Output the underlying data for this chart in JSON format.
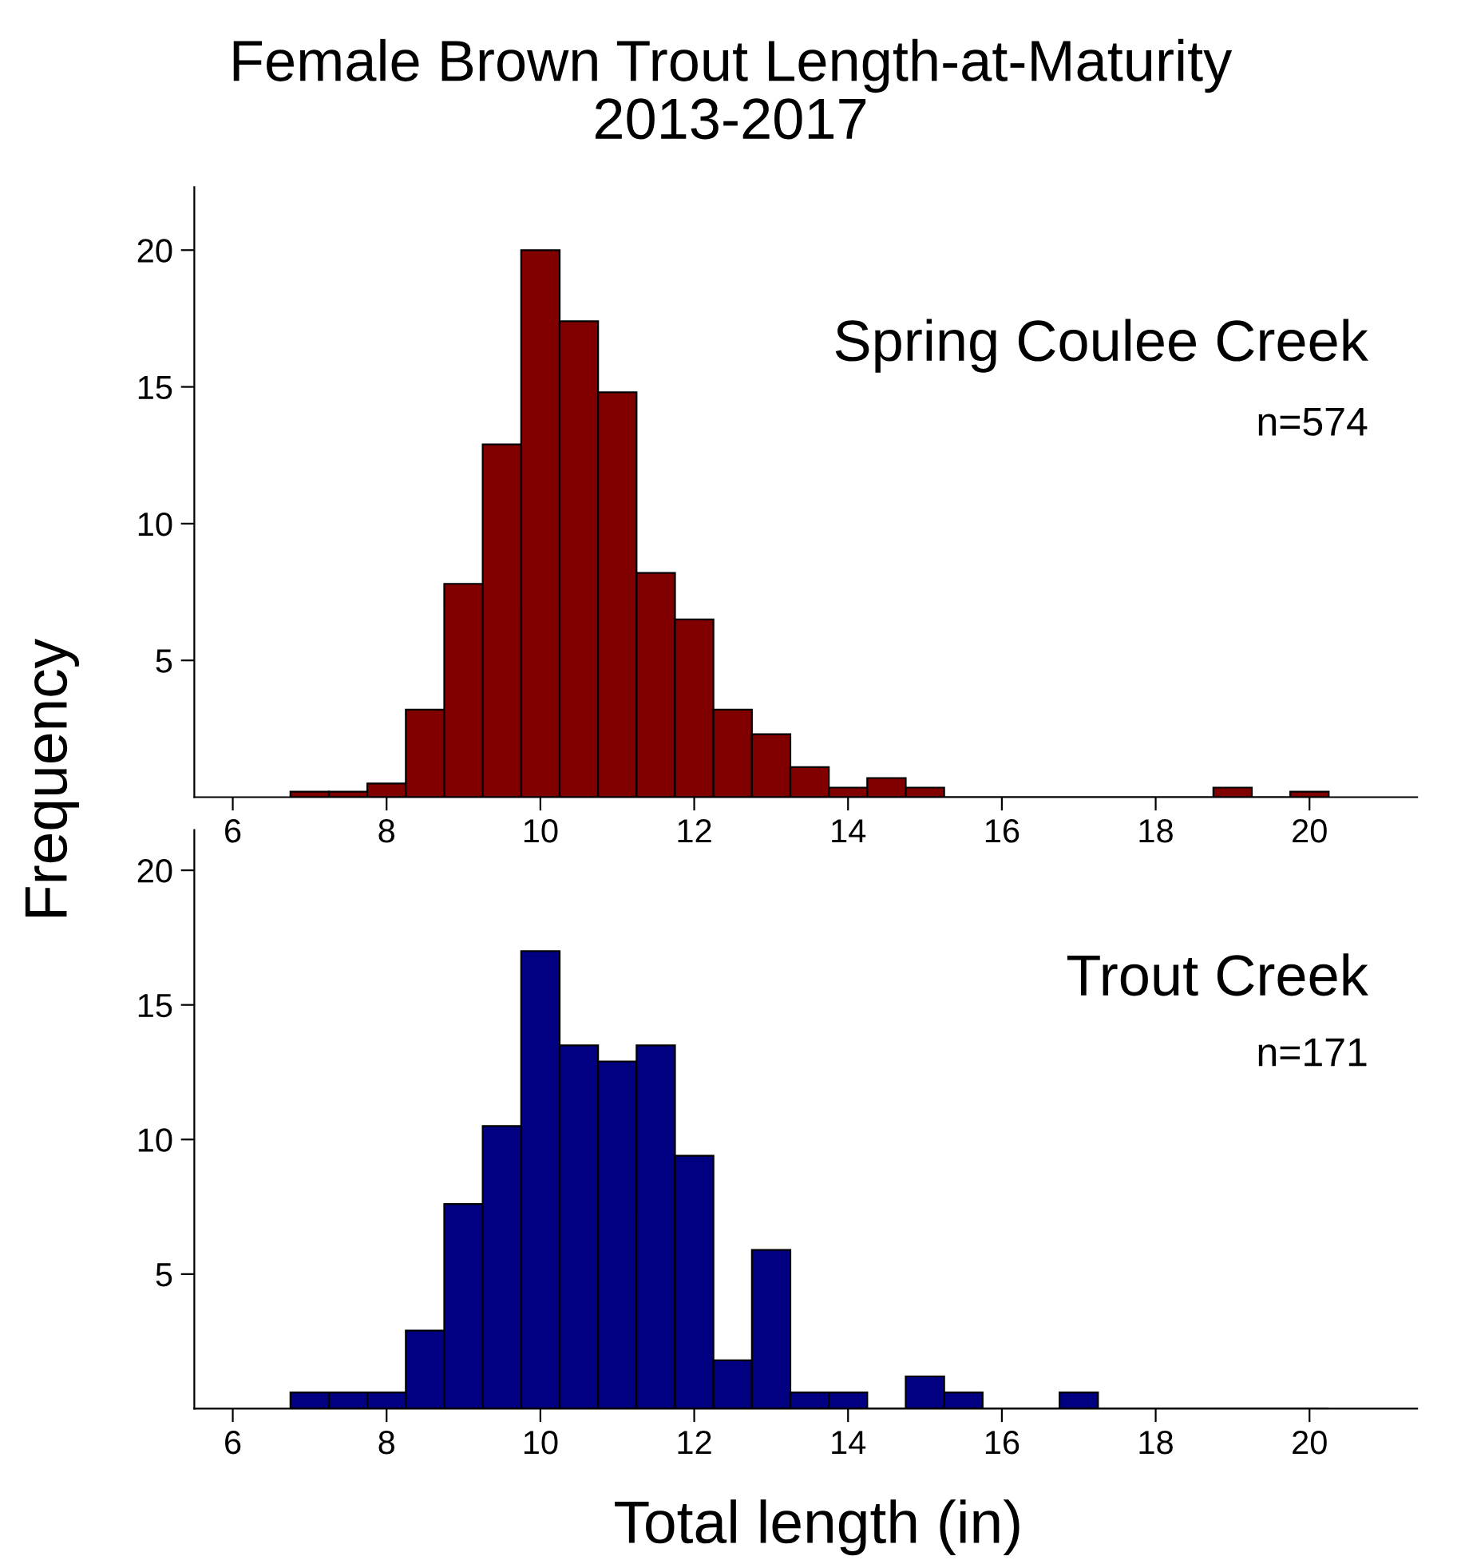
{
  "chart_data": [
    {
      "type": "histogram",
      "title": "Female Brown Trout Length-at-Maturity\n2013-2017",
      "ylabel": "Frequency",
      "color": "#800000",
      "bins": [
        6.75,
        7.25,
        7.75,
        8.25,
        8.75,
        9.25,
        9.75,
        10.25,
        10.75,
        11.25,
        11.75,
        12.25,
        12.75,
        13.25,
        13.75,
        14.25,
        14.75,
        15.25,
        15.75,
        16.25,
        16.75,
        17.25,
        17.75,
        18.25,
        18.75,
        19.25,
        19.75,
        20.25
      ],
      "values": [
        0.2,
        0.2,
        0.5,
        3.2,
        7.8,
        12.9,
        20,
        17.4,
        14.8,
        8.2,
        6.5,
        3.2,
        2.3,
        1.1,
        0.35,
        0.7,
        0.35,
        0,
        0,
        0,
        0,
        0,
        0,
        0,
        0.35,
        0,
        0.2
      ],
      "xlim": [
        5.5,
        21.4
      ],
      "ylim": [
        0,
        22.3
      ],
      "xticks": [
        6,
        8,
        10,
        12,
        14,
        16,
        18,
        20
      ],
      "yticks": [
        5,
        10,
        15,
        20
      ],
      "grid": false,
      "annotations": [
        "Spring Coulee Creek",
        "n=574"
      ]
    },
    {
      "type": "histogram",
      "xlabel": "Total length (in)",
      "color": "#000080",
      "bins": [
        6.75,
        7.25,
        7.75,
        8.25,
        8.75,
        9.25,
        9.75,
        10.25,
        10.75,
        11.25,
        11.75,
        12.25,
        12.75,
        13.25,
        13.75,
        14.25,
        14.75,
        15.25,
        15.75,
        16.25,
        16.75,
        17.25,
        17.75,
        18.25,
        18.75,
        19.25,
        19.75,
        20.25
      ],
      "values": [
        0.6,
        0.6,
        0.6,
        2.9,
        7.6,
        10.5,
        17.0,
        13.5,
        12.9,
        13.5,
        9.4,
        1.8,
        5.9,
        0.6,
        0.6,
        0,
        1.2,
        0.6,
        0,
        0,
        0.6,
        0,
        0,
        0,
        0,
        0,
        0
      ],
      "xlim": [
        5.5,
        21.4
      ],
      "ylim": [
        0,
        21.5
      ],
      "xticks": [
        6,
        8,
        10,
        12,
        14,
        16,
        18,
        20
      ],
      "yticks": [
        5,
        10,
        15,
        20
      ],
      "grid": false,
      "annotations": [
        "Trout Creek",
        "n=171"
      ]
    }
  ]
}
